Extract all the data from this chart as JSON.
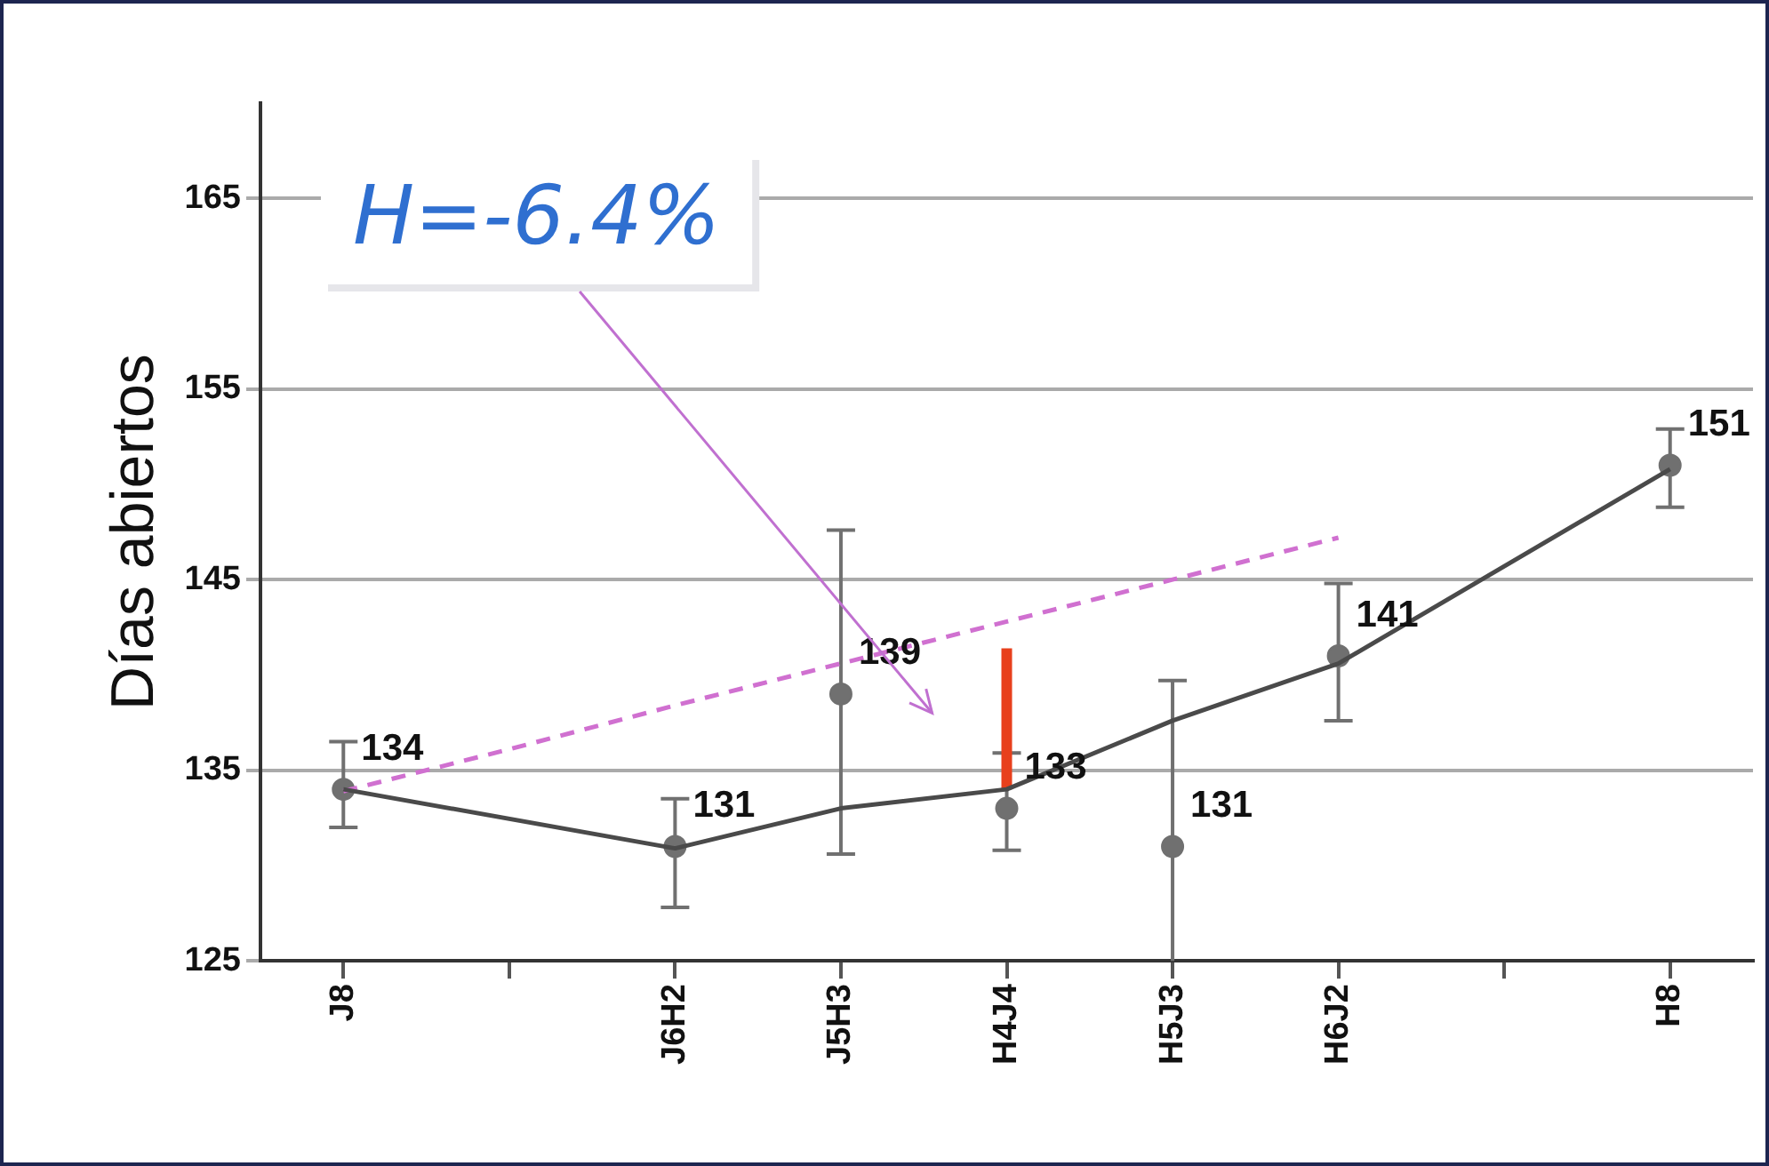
{
  "chart_data": {
    "type": "scatter",
    "ylabel": "Días abiertos",
    "categories": [
      "J8",
      null,
      "J6H2",
      "J5H3",
      "H4J4",
      "H5J3",
      "H6J2",
      null,
      "H8"
    ],
    "ylim": [
      125,
      170
    ],
    "yticks": [
      125,
      135,
      145,
      155,
      165
    ],
    "grid": "y",
    "legend": false,
    "series": [
      {
        "type": "line",
        "color": "#4a4a4a",
        "marker": "none",
        "x": [
          "J8",
          "J6H2",
          "J5H3",
          "H4J4",
          "H5J3",
          "H6J2",
          "H8"
        ],
        "values": [
          134,
          130.9,
          133,
          134,
          137.6,
          140.6,
          150.8
        ]
      },
      {
        "type": "line",
        "color": "#d070d0",
        "marker": "none",
        "line_style": "dashed",
        "values": [
          133.9,
          136.1,
          138.4,
          140.6,
          142.8,
          145,
          147.2,
          null,
          null
        ]
      },
      {
        "type": "line",
        "color": "#e8401c",
        "marker": "none",
        "x": [
          "H4J4",
          "H4J4"
        ],
        "values": [
          134,
          141.4
        ]
      },
      {
        "color": "#707070",
        "marker": "circle",
        "x": [
          "J8",
          "J6H2",
          "J5H3",
          "H4J4",
          "H5J3",
          "H6J2",
          "H8"
        ],
        "values": [
          134,
          131,
          139,
          133,
          131,
          141,
          151
        ],
        "value_labels": [
          "134",
          "131",
          "139",
          "133",
          "131",
          "141",
          "151"
        ],
        "errors": [
          [
            132,
            136.5
          ],
          [
            127.8,
            133.5
          ],
          [
            130.6,
            147.6
          ],
          [
            130.8,
            135.9
          ],
          [
            125,
            139.7
          ],
          [
            137.6,
            144.8
          ],
          [
            148.8,
            152.9
          ]
        ]
      }
    ],
    "annotations": [
      "H=-6.4%"
    ]
  }
}
